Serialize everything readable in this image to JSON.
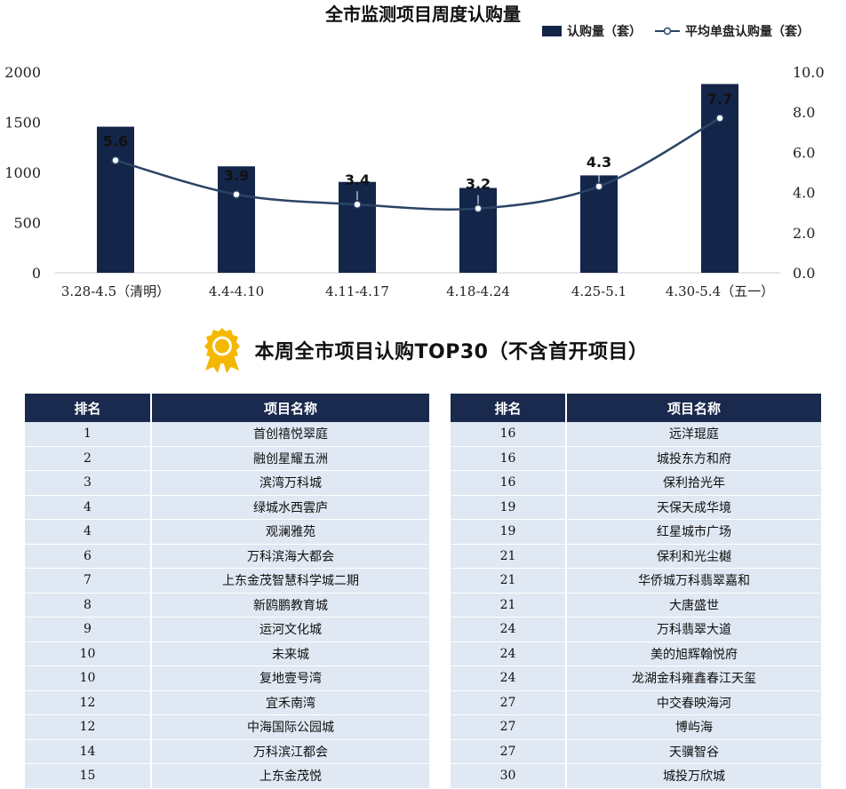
{
  "chart_data": {
    "type": "bar+line",
    "title": "全市监测项目周度认购量",
    "categories": [
      "3.28-4.5（清明）",
      "4.4-4.10",
      "4.11-4.17",
      "4.18-4.24",
      "4.25-5.1",
      "4.30-5.4（五一）"
    ],
    "series": [
      {
        "name": "认购量（套）",
        "type": "bar",
        "axis": "left",
        "values": [
          1455,
          1060,
          905,
          845,
          970,
          1880
        ],
        "color": "#14254a"
      },
      {
        "name": "平均单盘认购量（套）",
        "type": "line",
        "axis": "right",
        "values": [
          5.6,
          3.9,
          3.4,
          3.2,
          4.3,
          7.7
        ],
        "labels": [
          "5.6",
          "3.9",
          "3.4",
          "3.2",
          "4.3",
          "7.7"
        ],
        "color": "#2b4466"
      }
    ],
    "ylim_left": [
      0,
      2000
    ],
    "yticks_left": [
      "0",
      "500",
      "1000",
      "1500",
      "2000"
    ],
    "ylim_right": [
      0,
      10
    ],
    "yticks_right": [
      "0.0",
      "2.0",
      "4.0",
      "6.0",
      "8.0",
      "10.0"
    ],
    "grid": false,
    "legend_position": "top-right"
  },
  "section": {
    "title": "本周全市项目认购TOP30（不含首开项目）",
    "medal_icon": "award-medal-icon"
  },
  "tables": {
    "headers": [
      "排名",
      "项目名称"
    ],
    "left": [
      {
        "rank": "1",
        "name": "首创禧悦翠庭"
      },
      {
        "rank": "2",
        "name": "融创星耀五洲"
      },
      {
        "rank": "3",
        "name": "滨湾万科城"
      },
      {
        "rank": "4",
        "name": "绿城水西雲庐"
      },
      {
        "rank": "4",
        "name": "观澜雅苑"
      },
      {
        "rank": "6",
        "name": "万科滨海大都会"
      },
      {
        "rank": "7",
        "name": "上东金茂智慧科学城二期"
      },
      {
        "rank": "8",
        "name": "新鸥鹏教育城"
      },
      {
        "rank": "9",
        "name": "运河文化城"
      },
      {
        "rank": "10",
        "name": "未来城"
      },
      {
        "rank": "10",
        "name": "复地壹号湾"
      },
      {
        "rank": "12",
        "name": "宜禾南湾"
      },
      {
        "rank": "12",
        "name": "中海国际公园城"
      },
      {
        "rank": "14",
        "name": "万科滨江都会"
      },
      {
        "rank": "15",
        "name": "上东金茂悦"
      }
    ],
    "right": [
      {
        "rank": "16",
        "name": "远洋琨庭"
      },
      {
        "rank": "16",
        "name": "城投东方和府"
      },
      {
        "rank": "16",
        "name": "保利拾光年"
      },
      {
        "rank": "19",
        "name": "天保天成华境"
      },
      {
        "rank": "19",
        "name": "红星城市广场"
      },
      {
        "rank": "21",
        "name": "保利和光尘樾"
      },
      {
        "rank": "21",
        "name": "华侨城万科翡翠嘉和"
      },
      {
        "rank": "21",
        "name": "大唐盛世"
      },
      {
        "rank": "24",
        "name": "万科翡翠大道"
      },
      {
        "rank": "24",
        "name": "美的旭辉翰悦府"
      },
      {
        "rank": "24",
        "name": "龙湖金科雍鑫春江天玺"
      },
      {
        "rank": "27",
        "name": "中交春映海河"
      },
      {
        "rank": "27",
        "name": "博屿海"
      },
      {
        "rank": "27",
        "name": "天骥智谷"
      },
      {
        "rank": "30",
        "name": "城投万欣城"
      }
    ]
  }
}
